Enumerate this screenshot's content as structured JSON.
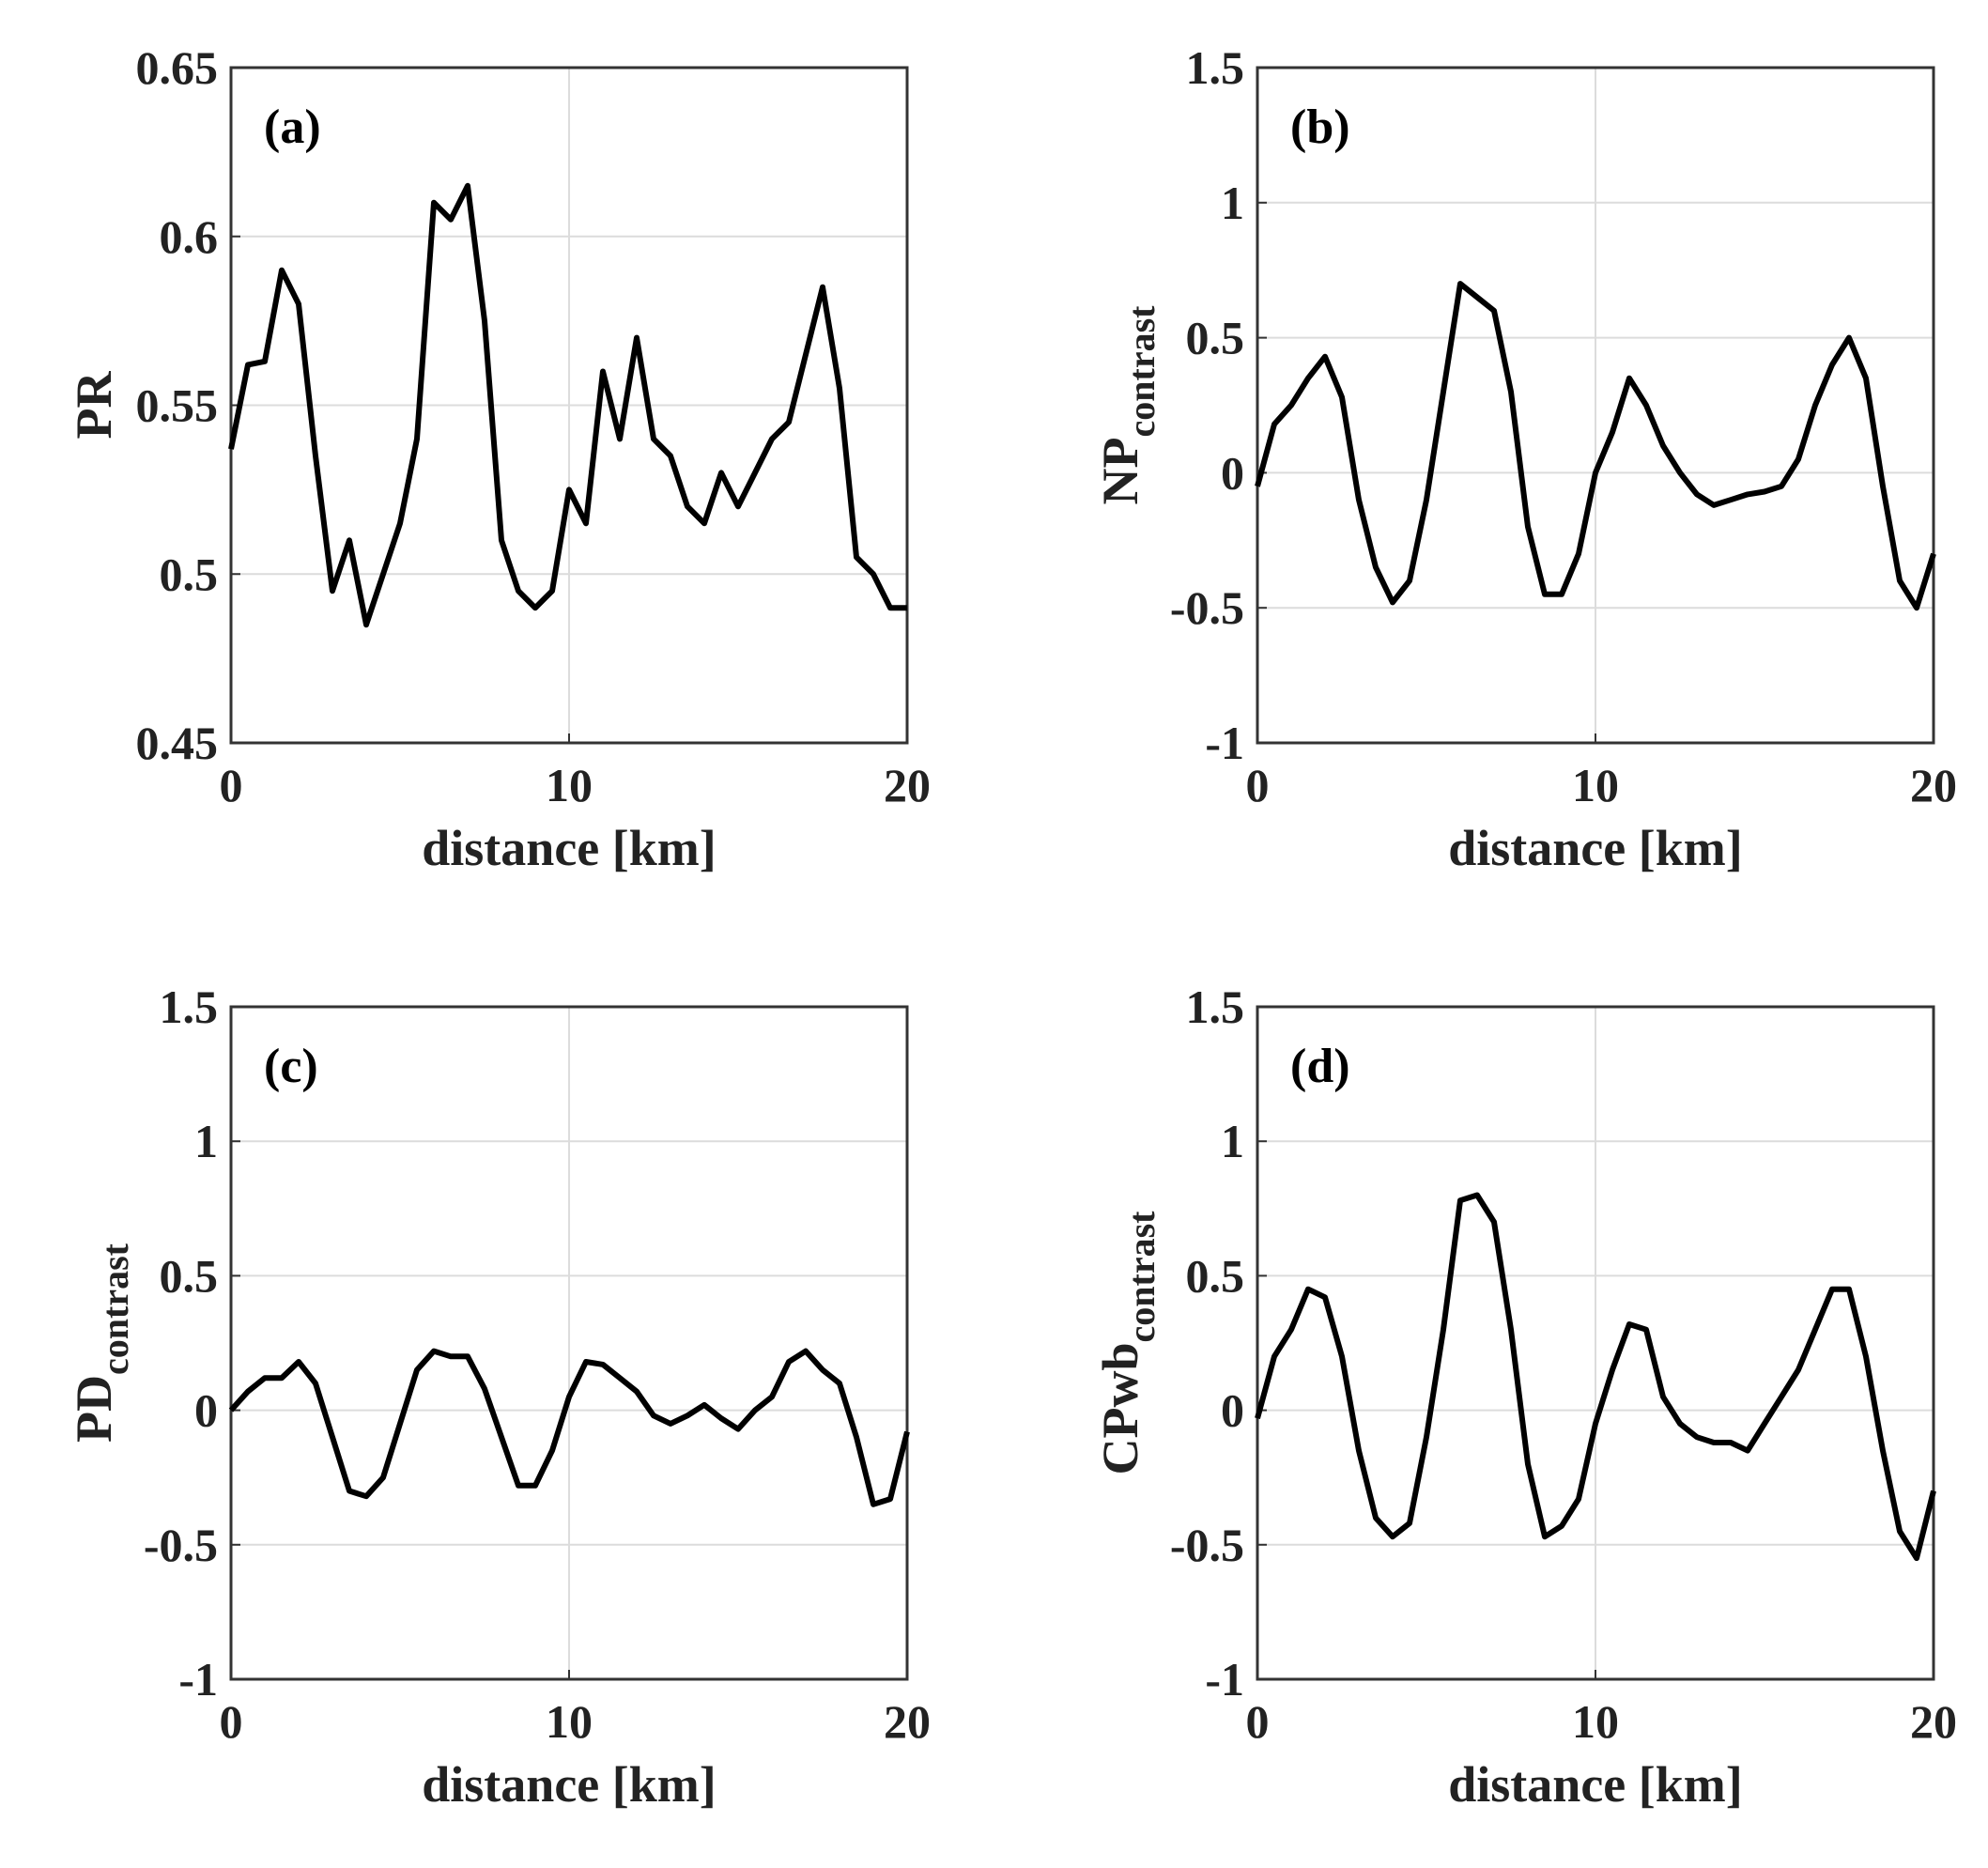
{
  "chart_data": [
    {
      "type": "line",
      "annotation": "(a)",
      "xlabel": "distance [km]",
      "ylabel": "PR",
      "grid": true,
      "color": "#000000",
      "x": [
        0,
        0.5,
        1,
        1.5,
        2,
        2.5,
        3,
        3.5,
        4,
        4.5,
        5,
        5.5,
        6,
        6.5,
        7,
        7.5,
        8,
        8.5,
        9,
        9.5,
        10,
        10.5,
        11,
        11.5,
        12,
        12.5,
        13,
        13.5,
        14,
        14.5,
        15,
        15.5,
        16,
        16.5,
        17,
        17.5,
        18,
        18.5,
        19,
        19.5,
        20
      ],
      "values": [
        0.537,
        0.562,
        0.563,
        0.59,
        0.58,
        0.535,
        0.495,
        0.51,
        0.485,
        0.5,
        0.515,
        0.54,
        0.61,
        0.605,
        0.615,
        0.575,
        0.51,
        0.495,
        0.49,
        0.495,
        0.525,
        0.515,
        0.56,
        0.54,
        0.57,
        0.54,
        0.535,
        0.52,
        0.515,
        0.53,
        0.52,
        0.53,
        0.54,
        0.545,
        0.565,
        0.585,
        0.555,
        0.505,
        0.5,
        0.49,
        0.49
      ],
      "xlim": [
        0,
        20
      ],
      "xticks": [
        0,
        10,
        20
      ],
      "ylim": [
        0.45,
        0.65
      ],
      "yticks": [
        0.45,
        0.5,
        0.55,
        0.6,
        0.65
      ]
    },
    {
      "type": "line",
      "annotation": "(b)",
      "xlabel": "distance [km]",
      "ylabel": "NP",
      "ylabel_sub": "contrast",
      "grid": true,
      "color": "#000000",
      "x": [
        0,
        0.5,
        1,
        1.5,
        2,
        2.5,
        3,
        3.5,
        4,
        4.5,
        5,
        5.5,
        6,
        6.5,
        7,
        7.5,
        8,
        8.5,
        9,
        9.5,
        10,
        10.5,
        11,
        11.5,
        12,
        12.5,
        13,
        13.5,
        14,
        14.5,
        15,
        15.5,
        16,
        16.5,
        17,
        17.5,
        18,
        18.5,
        19,
        19.5,
        20
      ],
      "values": [
        -0.05,
        0.18,
        0.25,
        0.35,
        0.43,
        0.28,
        -0.1,
        -0.35,
        -0.48,
        -0.4,
        -0.1,
        0.3,
        0.7,
        0.65,
        0.6,
        0.3,
        -0.2,
        -0.45,
        -0.45,
        -0.3,
        0,
        0.15,
        0.35,
        0.25,
        0.1,
        0,
        -0.08,
        -0.12,
        -0.1,
        -0.08,
        -0.07,
        -0.05,
        0.05,
        0.25,
        0.4,
        0.5,
        0.35,
        -0.05,
        -0.4,
        -0.5,
        -0.3
      ],
      "xlim": [
        0,
        20
      ],
      "xticks": [
        0,
        10,
        20
      ],
      "ylim": [
        -1,
        1.5
      ],
      "yticks": [
        -1,
        -0.5,
        0,
        0.5,
        1,
        1.5
      ]
    },
    {
      "type": "line",
      "annotation": "(c)",
      "xlabel": "distance [km]",
      "ylabel": "PD",
      "ylabel_sub": "contrast",
      "grid": true,
      "color": "#000000",
      "x": [
        0,
        0.5,
        1,
        1.5,
        2,
        2.5,
        3,
        3.5,
        4,
        4.5,
        5,
        5.5,
        6,
        6.5,
        7,
        7.5,
        8,
        8.5,
        9,
        9.5,
        10,
        10.5,
        11,
        11.5,
        12,
        12.5,
        13,
        13.5,
        14,
        14.5,
        15,
        15.5,
        16,
        16.5,
        17,
        17.5,
        18,
        18.5,
        19,
        19.5,
        20
      ],
      "values": [
        0,
        0.07,
        0.12,
        0.12,
        0.18,
        0.1,
        -0.1,
        -0.3,
        -0.32,
        -0.25,
        -0.05,
        0.15,
        0.22,
        0.2,
        0.2,
        0.08,
        -0.1,
        -0.28,
        -0.28,
        -0.15,
        0.05,
        0.18,
        0.17,
        0.12,
        0.07,
        -0.02,
        -0.05,
        -0.02,
        0.02,
        -0.03,
        -0.07,
        0,
        0.05,
        0.18,
        0.22,
        0.15,
        0.1,
        -0.1,
        -0.35,
        -0.33,
        -0.08
      ],
      "xlim": [
        0,
        20
      ],
      "xticks": [
        0,
        10,
        20
      ],
      "ylim": [
        -1,
        1.5
      ],
      "yticks": [
        -1,
        -0.5,
        0,
        0.5,
        1,
        1.5
      ]
    },
    {
      "type": "line",
      "annotation": "(d)",
      "xlabel": "distance [km]",
      "ylabel": "CPwb",
      "ylabel_sub": "contrast",
      "grid": true,
      "color": "#000000",
      "x": [
        0,
        0.5,
        1,
        1.5,
        2,
        2.5,
        3,
        3.5,
        4,
        4.5,
        5,
        5.5,
        6,
        6.5,
        7,
        7.5,
        8,
        8.5,
        9,
        9.5,
        10,
        10.5,
        11,
        11.5,
        12,
        12.5,
        13,
        13.5,
        14,
        14.5,
        15,
        15.5,
        16,
        16.5,
        17,
        17.5,
        18,
        18.5,
        19,
        19.5,
        20
      ],
      "values": [
        -0.03,
        0.2,
        0.3,
        0.45,
        0.42,
        0.2,
        -0.15,
        -0.4,
        -0.47,
        -0.42,
        -0.1,
        0.3,
        0.78,
        0.8,
        0.7,
        0.3,
        -0.2,
        -0.47,
        -0.43,
        -0.33,
        -0.05,
        0.15,
        0.32,
        0.3,
        0.05,
        -0.05,
        -0.1,
        -0.12,
        -0.12,
        -0.15,
        -0.05,
        0.05,
        0.15,
        0.3,
        0.45,
        0.45,
        0.2,
        -0.15,
        -0.45,
        -0.55,
        -0.3
      ],
      "xlim": [
        0,
        20
      ],
      "xticks": [
        0,
        10,
        20
      ],
      "ylim": [
        -1,
        1.5
      ],
      "yticks": [
        -1,
        -0.5,
        0,
        0.5,
        1,
        1.5
      ]
    }
  ]
}
